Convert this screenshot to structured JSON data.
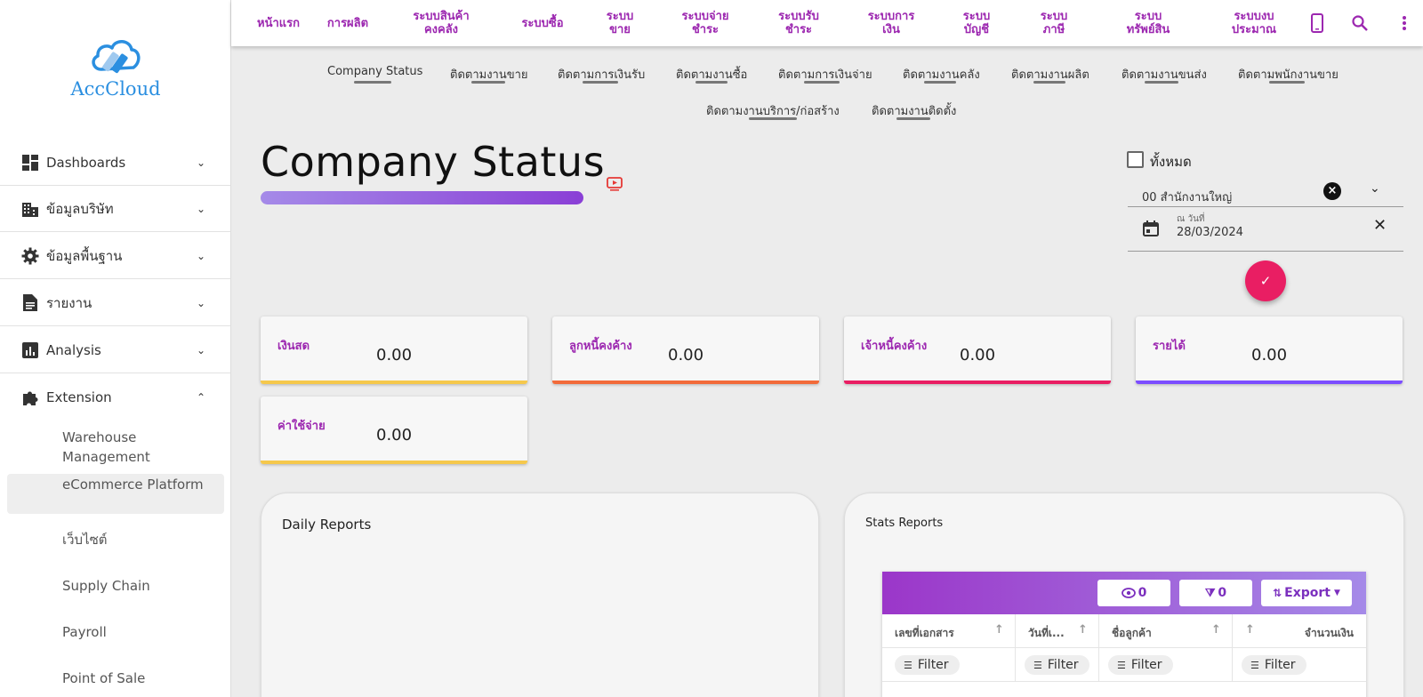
{
  "brand": {
    "name": "AccCloud",
    "cloud_color": "#2b8fe0"
  },
  "sidebar": {
    "items": [
      {
        "label": "Dashboards",
        "icon": "dashboard-icon",
        "expanded": false
      },
      {
        "label": "ข้อมูลบริษัท",
        "icon": "building-icon",
        "expanded": false
      },
      {
        "label": "ข้อมูลพื้นฐาน",
        "icon": "gear-icon",
        "expanded": false
      },
      {
        "label": "รายงาน",
        "icon": "document-icon",
        "expanded": false
      },
      {
        "label": "Analysis",
        "icon": "analytics-icon",
        "expanded": false
      },
      {
        "label": "Extension",
        "icon": "puzzle-icon",
        "expanded": true
      }
    ],
    "extension_items": [
      {
        "label": "Warehouse Management"
      },
      {
        "label": "eCommerce Platform",
        "active": true
      },
      {
        "label": "เว็บไซต์"
      },
      {
        "label": "Supply Chain"
      },
      {
        "label": "Payroll"
      },
      {
        "label": "Point of Sale"
      }
    ]
  },
  "topnav": {
    "items": [
      {
        "label": "หน้าแรก"
      },
      {
        "label": "การผลิต"
      },
      {
        "label": "ระบบสินค้า คงคลัง"
      },
      {
        "label": "ระบบซื้อ"
      },
      {
        "label": "ระบบ ขาย"
      },
      {
        "label": "ระบบจ่าย ชำระ"
      },
      {
        "label": "ระบบรับ ชำระ"
      },
      {
        "label": "ระบบการ เงิน"
      },
      {
        "label": "ระบบ บัญชี"
      },
      {
        "label": "ระบบ ภาษี"
      },
      {
        "label": "ระบบ ทรัพย์สิน"
      },
      {
        "label": "ระบบงบ ประมาณ"
      }
    ],
    "icons": [
      "mobile-icon",
      "search-icon",
      "more-vert-icon"
    ],
    "accent_color": "#9c27b0"
  },
  "tabs": [
    {
      "label": "Company Status"
    },
    {
      "label": "ติดตามงานขาย"
    },
    {
      "label": "ติดตามการเงินรับ"
    },
    {
      "label": "ติดตามงานซื้อ"
    },
    {
      "label": "ติดตามการเงินจ่าย"
    },
    {
      "label": "ติดตามงานคลัง"
    },
    {
      "label": "ติดตามงานผลิต"
    },
    {
      "label": "ติดตามงานขนส่ง"
    },
    {
      "label": "ติดตามพนักงานขาย"
    },
    {
      "label": "ติดตามงานบริการ/ก่อสร้าง"
    },
    {
      "label": "ติดตามงานติดตั้ง"
    }
  ],
  "page": {
    "title": "Company Status"
  },
  "filters": {
    "all_label": "ทั้งหมด",
    "all_checked": false,
    "branch_value": "00 สำนักงานใหญ่",
    "date_label": "ณ วันที่",
    "date_value": "28/03/2024",
    "submit_icon": "check-icon"
  },
  "stats": [
    {
      "label": "เงินสด",
      "value": "0.00",
      "color": "#f5c84c"
    },
    {
      "label": "ลูกหนี้คงค้าง",
      "value": "0.00",
      "color": "#f26b3a"
    },
    {
      "label": "เจ้าหนี้คงค้าง",
      "value": "0.00",
      "color": "#e91e63"
    },
    {
      "label": "รายได้",
      "value": "0.00",
      "color": "#7c4dff"
    },
    {
      "label": "ค่าใช้จ่าย",
      "value": "0.00",
      "color": "#f5c84c"
    }
  ],
  "daily_reports": {
    "title": "Daily Reports"
  },
  "stats_reports": {
    "title": "Stats Reports",
    "toolbar": {
      "view_count": "0",
      "hidden_count": "0",
      "export_label": "Export"
    },
    "columns": [
      "เลขที่เอกสาร",
      "วันที่เ...",
      "ชื่อลูกค้า",
      "จำนวนเงิน"
    ],
    "filter_label": "Filter"
  }
}
